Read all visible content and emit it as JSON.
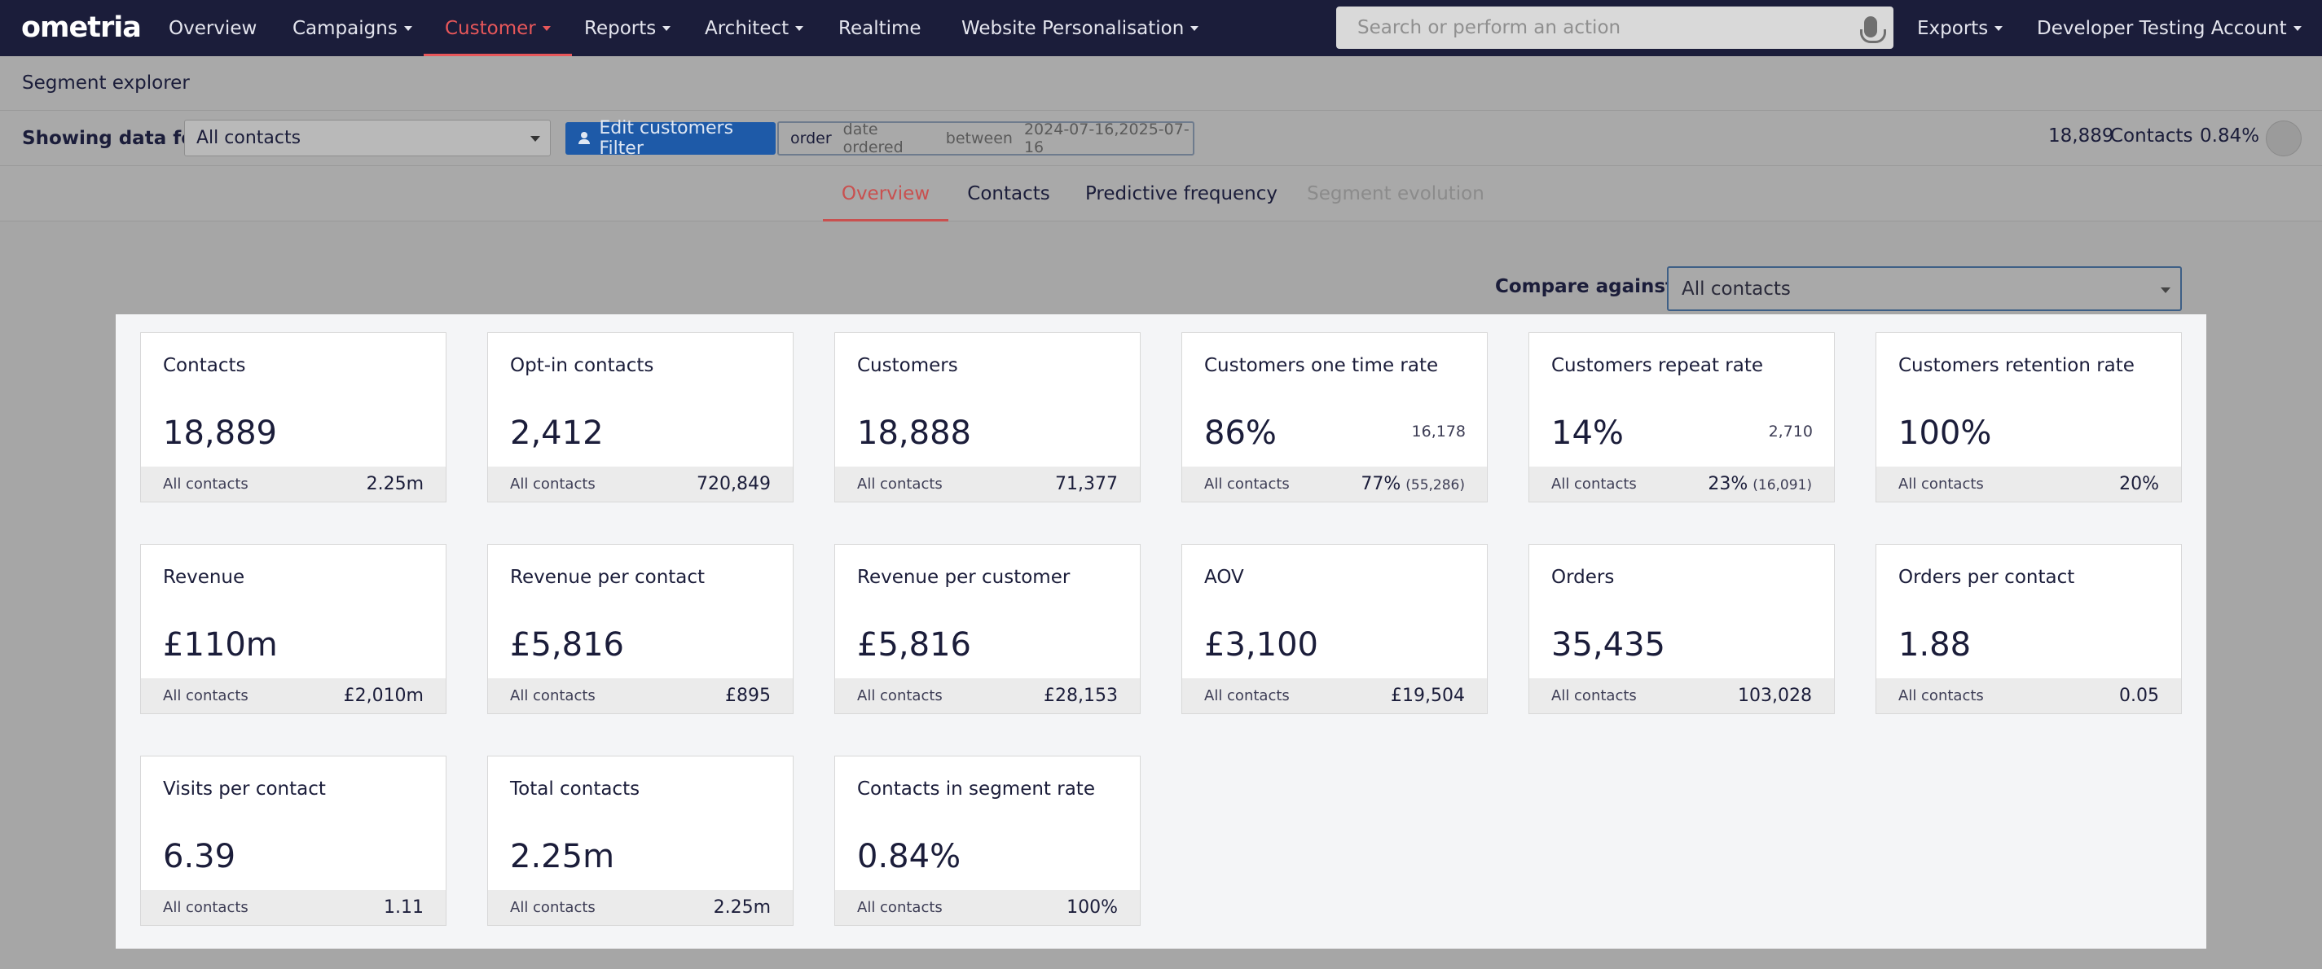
{
  "brand": {
    "logo_text": "ometria",
    "accent": "#e8575a",
    "nav_bg": "#1b1d3a"
  },
  "nav": {
    "items": [
      {
        "label": "Overview",
        "caret": false
      },
      {
        "label": "Campaigns",
        "caret": true
      },
      {
        "label": "Customer",
        "caret": true,
        "active": true
      },
      {
        "label": "Reports",
        "caret": true
      },
      {
        "label": "Architect",
        "caret": true
      },
      {
        "label": "Realtime",
        "caret": false
      },
      {
        "label": "Website Personalisation",
        "caret": true
      }
    ],
    "search_placeholder": "Search or perform an action",
    "exports_label": "Exports",
    "account_label": "Developer Testing Account"
  },
  "page": {
    "title": "Segment explorer"
  },
  "filter": {
    "showing_label": "Showing data for:",
    "selected_segment": "All contacts",
    "edit_button_label": "Edit customers Filter",
    "chip_type": "order",
    "chip_field": "date ordered",
    "chip_operator": "between",
    "chip_value": "2024-07-16,2025-07-16",
    "contacts_count": "18,889",
    "contacts_label": "Contacts",
    "contacts_percent": "0.84%"
  },
  "tabs": [
    {
      "label": "Overview",
      "active": true
    },
    {
      "label": "Contacts"
    },
    {
      "label": "Predictive frequency"
    },
    {
      "label": "Segment evolution",
      "disabled": true
    }
  ],
  "compare": {
    "label": "Compare against",
    "selected": "All contacts"
  },
  "cards": [
    {
      "title": "Contacts",
      "value": "18,889",
      "sub": "",
      "footer_label": "All contacts",
      "footer_value": "2.25m",
      "footer_extra": ""
    },
    {
      "title": "Opt-in contacts",
      "value": "2,412",
      "sub": "",
      "footer_label": "All contacts",
      "footer_value": "720,849",
      "footer_extra": ""
    },
    {
      "title": "Customers",
      "value": "18,888",
      "sub": "",
      "footer_label": "All contacts",
      "footer_value": "71,377",
      "footer_extra": ""
    },
    {
      "title": "Customers one time rate",
      "value": "86%",
      "sub": "16,178",
      "footer_label": "All contacts",
      "footer_value": "77%",
      "footer_extra": "(55,286)"
    },
    {
      "title": "Customers repeat rate",
      "value": "14%",
      "sub": "2,710",
      "footer_label": "All contacts",
      "footer_value": "23%",
      "footer_extra": "(16,091)"
    },
    {
      "title": "Customers retention rate",
      "value": "100%",
      "sub": "",
      "footer_label": "All contacts",
      "footer_value": "20%",
      "footer_extra": ""
    },
    {
      "title": "Revenue",
      "value": "£110m",
      "sub": "",
      "footer_label": "All contacts",
      "footer_value": "£2,010m",
      "footer_extra": ""
    },
    {
      "title": "Revenue per contact",
      "value": "£5,816",
      "sub": "",
      "footer_label": "All contacts",
      "footer_value": "£895",
      "footer_extra": ""
    },
    {
      "title": "Revenue per customer",
      "value": "£5,816",
      "sub": "",
      "footer_label": "All contacts",
      "footer_value": "£28,153",
      "footer_extra": ""
    },
    {
      "title": "AOV",
      "value": "£3,100",
      "sub": "",
      "footer_label": "All contacts",
      "footer_value": "£19,504",
      "footer_extra": ""
    },
    {
      "title": "Orders",
      "value": "35,435",
      "sub": "",
      "footer_label": "All contacts",
      "footer_value": "103,028",
      "footer_extra": ""
    },
    {
      "title": "Orders per contact",
      "value": "1.88",
      "sub": "",
      "footer_label": "All contacts",
      "footer_value": "0.05",
      "footer_extra": ""
    },
    {
      "title": "Visits per contact",
      "value": "6.39",
      "sub": "",
      "footer_label": "All contacts",
      "footer_value": "1.11",
      "footer_extra": ""
    },
    {
      "title": "Total contacts",
      "value": "2.25m",
      "sub": "",
      "footer_label": "All contacts",
      "footer_value": "2.25m",
      "footer_extra": ""
    },
    {
      "title": "Contacts in segment rate",
      "value": "0.84%",
      "sub": "",
      "footer_label": "All contacts",
      "footer_value": "100%",
      "footer_extra": ""
    }
  ]
}
